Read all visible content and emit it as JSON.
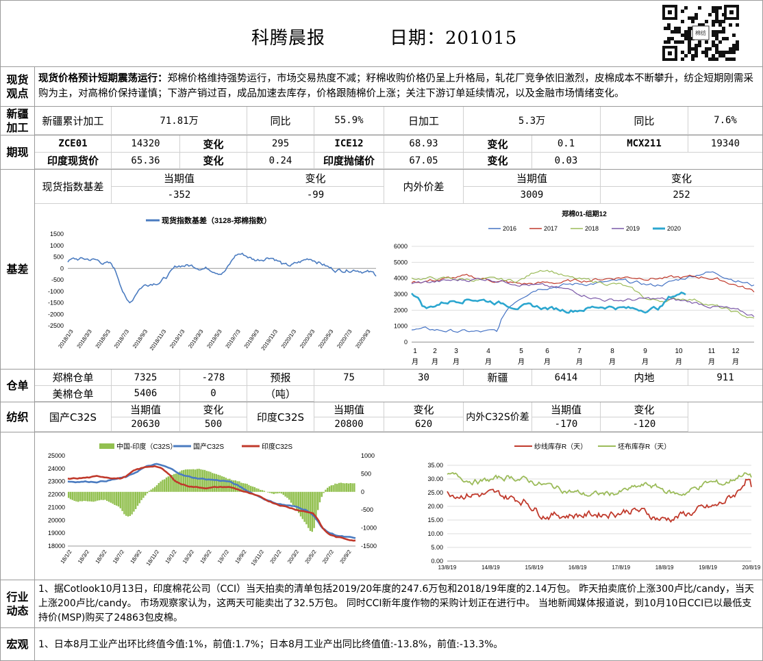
{
  "header": {
    "title": "科腾晨报",
    "date_label": "日期：201015",
    "qr_text": "棉纺"
  },
  "view": {
    "label": "现货\n观点",
    "bold": "现货价格预计短期震荡运行：",
    "body": "郑棉价格维持强势运行，市场交易热度不减；籽棉收购价格仍呈上升格局，轧花厂竞争依旧激烈，皮棉成本不断攀升，纺企短期刚需采购为主，对高棉价保持谨慎；下游产销过百，成品加速去库存，价格跟随棉价上涨；关注下游订单延续情况，以及金融市场情绪变化。"
  },
  "xinjiang": {
    "label": "新疆\n加工",
    "c1": "新疆累计加工",
    "c2": "71.81万",
    "c3": "同比",
    "c4": "55.9%",
    "c5": "日加工",
    "c6": "5.3万",
    "c7": "同比",
    "c8": "7.6%"
  },
  "futures": {
    "label": "期现",
    "r1": [
      "ZCE01",
      "14320",
      "变化",
      "295",
      "ICE12",
      "68.93",
      "变化",
      "0.1",
      "MCX211",
      "19340"
    ],
    "r2": [
      "印度现货价",
      "65.36",
      "变化",
      "0.24",
      "印度抛储价",
      "67.05",
      "变化",
      "0.03"
    ]
  },
  "basis": {
    "label": "基差",
    "h1": "现货指数基差",
    "h2": "当期值",
    "h3": "变化",
    "h4": "内外价差",
    "h5": "当期值",
    "h6": "变化",
    "v1": "-352",
    "v2": "-99",
    "v3": "3009",
    "v4": "252"
  },
  "chart1": {
    "legend": "现货指数基差（3128-郑棉指数）",
    "yticks": [
      "1500",
      "1000",
      "500",
      "0",
      "-500",
      "-1000",
      "-1500",
      "-2000",
      "-2500"
    ],
    "xticks": [
      "2018/1/3",
      "2018/3/3",
      "2018/5/3",
      "2018/7/3",
      "2018/9/3",
      "2018/11/3",
      "2019/1/3",
      "2019/3/3",
      "2019/5/3",
      "2019/7/3",
      "2019/9/3",
      "2019/11/3",
      "2020/1/3",
      "2020/3/3",
      "2020/5/3",
      "2020/7/3",
      "2020/9/3"
    ]
  },
  "chart2": {
    "title": "郑棉01-组期12",
    "legend": [
      "2016",
      "2017",
      "2018",
      "2019",
      "2020"
    ],
    "colors": [
      "#4472c4",
      "#c0392b",
      "#9bbb59",
      "#7a58a8",
      "#2ba6cf"
    ],
    "yticks": [
      "6000",
      "5000",
      "4000",
      "3000",
      "2000",
      "1000",
      "0"
    ],
    "months": [
      "1",
      "2",
      "3",
      "4",
      "5",
      "6",
      "7",
      "8",
      "9",
      "10",
      "11",
      "12"
    ],
    "month_unit": "月"
  },
  "warehouse": {
    "label": "仓单",
    "r1": [
      "郑棉仓单",
      "7325",
      "-278",
      "预报",
      "75",
      "30",
      "新疆",
      "6414",
      "内地",
      "911"
    ],
    "r2": [
      "美棉仓单",
      "5406",
      "0",
      "（吨）"
    ]
  },
  "textile": {
    "label": "纺织",
    "c1": "国产C32S",
    "c2": "当期值",
    "c3": "变化",
    "c4": "印度C32S",
    "c5": "当期值",
    "c6": "变化",
    "c7": "内外C32S价差",
    "c8": "当期值",
    "c9": "变化",
    "v1": "20630",
    "v2": "500",
    "v3": "20800",
    "v4": "620",
    "v5": "-170",
    "v6": "-120"
  },
  "chart3": {
    "legend": [
      "中国-印度（C32S）",
      "国产C32S",
      "印度C32S"
    ],
    "colors": [
      "#92c050",
      "#4a7bc0",
      "#c0392b"
    ],
    "yticks": [
      "25000",
      "24000",
      "23000",
      "22000",
      "21000",
      "20000",
      "19000",
      "18000"
    ],
    "y2ticks": [
      "1000",
      "500",
      "0",
      "-500",
      "-1000",
      "-1500"
    ],
    "xticks": [
      "18/1/2",
      "18/3/2",
      "18/5/2",
      "18/7/2",
      "18/9/2",
      "18/11/2",
      "19/1/2",
      "19/3/2",
      "19/5/2",
      "19/7/2",
      "19/9/2",
      "19/11/2",
      "20/1/2",
      "20/3/2",
      "20/5/2",
      "20/7/2",
      "20/9/2"
    ]
  },
  "chart4": {
    "legend": [
      "纱线库存R（天）",
      "坯布库存R（天）"
    ],
    "colors": [
      "#c0392b",
      "#9bbb59"
    ],
    "yticks": [
      "35.00",
      "30.00",
      "25.00",
      "20.00",
      "15.00",
      "10.00",
      "5.00",
      "0.00"
    ],
    "xticks": [
      "13/8/19",
      "14/8/19",
      "15/8/19",
      "16/8/19",
      "17/8/19",
      "18/8/19",
      "19/8/19",
      "20/8/19"
    ]
  },
  "industry": {
    "label": "行业\n动态",
    "body": "1、据Cotlook10月13日，印度棉花公司（CCI）当天拍卖的清单包括2019/20年度的247.6万包和2018/19年度的2.14万包。 昨天拍卖底价上涨300卢比/candy，当天上涨200卢比/candy。 市场观察家认为，这两天可能卖出了32.5万包。 同时CCI新年度作物的采购计划正在进行中。 当地新闻媒体报道说，到10月10日CCI已以最低支持价(MSP)购买了24863包皮棉。"
  },
  "macro": {
    "label": "宏观",
    "body": "1、日本8月工业产出环比终值今值:1%，前值:1.7%；日本8月工业产出同比终值值:-13.8%，前值:-13.3%。"
  }
}
